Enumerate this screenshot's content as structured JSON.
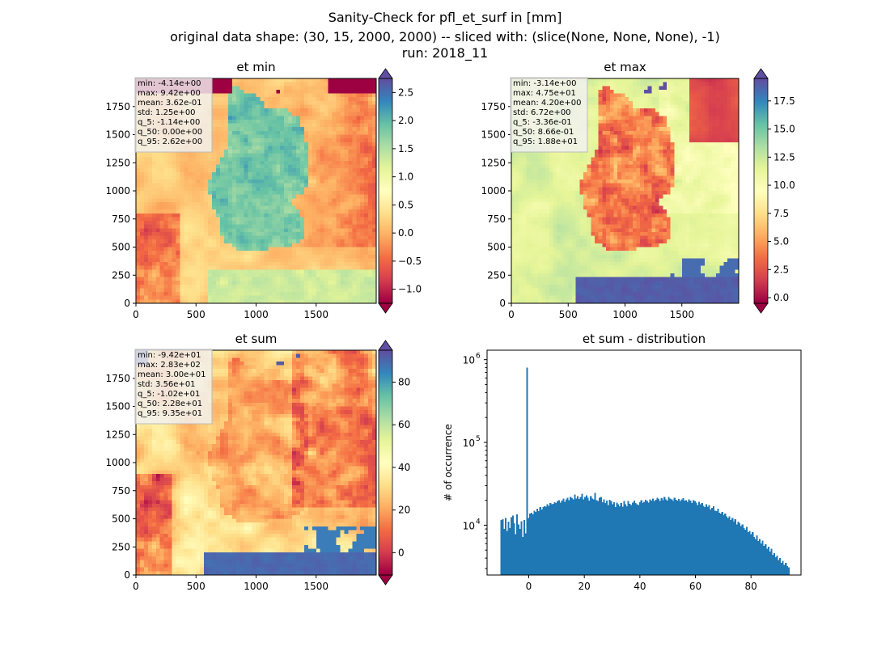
{
  "figure": {
    "suptitle_lines": [
      "Sanity-Check for pfl_et_surf in [mm]",
      "original data shape: (30, 15, 2000, 2000) -- sliced with: (slice(None, None, None), -1)",
      "run: 2018_11"
    ]
  },
  "colors": {
    "map_nan": "#ffffff",
    "hist_bar": "#1f77b4",
    "spectral": [
      "#9e0142",
      "#d53e4f",
      "#f46d43",
      "#fdae61",
      "#fee08b",
      "#ffffbf",
      "#e6f598",
      "#abdda4",
      "#66c2a5",
      "#3288bd",
      "#5e4fa2"
    ]
  },
  "chart_data": [
    {
      "type": "heatmap",
      "title": "et min",
      "colormap": "Spectral",
      "xlim": [
        0,
        2000
      ],
      "ylim": [
        0,
        2000
      ],
      "x_ticks": [
        0,
        500,
        1000,
        1500
      ],
      "y_ticks": [
        0,
        250,
        500,
        750,
        1000,
        1250,
        1500,
        1750
      ],
      "colorbar": {
        "vmin": -1.25,
        "vmax": 2.75,
        "ticks": [
          -1.0,
          -0.5,
          0.0,
          0.5,
          1.0,
          1.5,
          2.0,
          2.5
        ],
        "tick_labels": [
          "−1.0",
          "−0.5",
          "0.0",
          "0.5",
          "1.0",
          "1.5",
          "2.0",
          "2.5"
        ],
        "extend": "both"
      },
      "stats": [
        "min: -4.14e+00",
        "max: 9.42e+00",
        "mean: 3.62e-01",
        "std: 1.25e+00",
        "q_5: -1.14e+00",
        "q_50: 0.00e+00",
        "q_95: 2.62e+00"
      ]
    },
    {
      "type": "heatmap",
      "title": "et max",
      "colormap": "Spectral",
      "xlim": [
        0,
        2000
      ],
      "ylim": [
        0,
        2000
      ],
      "x_ticks": [
        0,
        500,
        1000,
        1500
      ],
      "y_ticks": [
        0,
        250,
        500,
        750,
        1000,
        1250,
        1500,
        1750
      ],
      "colorbar": {
        "vmin": -0.5,
        "vmax": 19.5,
        "ticks": [
          0.0,
          2.5,
          5.0,
          7.5,
          10.0,
          12.5,
          15.0,
          17.5
        ],
        "tick_labels": [
          "0.0",
          "2.5",
          "5.0",
          "7.5",
          "10.0",
          "12.5",
          "15.0",
          "17.5"
        ],
        "extend": "both"
      },
      "stats": [
        "min: -3.14e+00",
        "max: 4.75e+01",
        "mean: 4.20e+00",
        "std: 6.72e+00",
        "q_5: -3.36e-01",
        "q_50: 8.66e-01",
        "q_95: 1.88e+01"
      ]
    },
    {
      "type": "heatmap",
      "title": "et sum",
      "colormap": "Spectral",
      "xlim": [
        0,
        2000
      ],
      "ylim": [
        0,
        2000
      ],
      "x_ticks": [
        0,
        500,
        1000,
        1500
      ],
      "y_ticks": [
        0,
        250,
        500,
        750,
        1000,
        1250,
        1500,
        1750
      ],
      "colorbar": {
        "vmin": -10.5,
        "vmax": 95,
        "ticks": [
          0,
          20,
          40,
          60,
          80
        ],
        "tick_labels": [
          "0",
          "20",
          "40",
          "60",
          "80"
        ],
        "extend": "both"
      },
      "stats": [
        "min: -9.42e+01",
        "max: 2.83e+02",
        "mean: 3.00e+01",
        "std: 3.56e+01",
        "q_5: -1.02e+01",
        "q_50: 2.28e+01",
        "q_95: 9.35e+01"
      ]
    },
    {
      "type": "bar",
      "title": "et sum - distribution",
      "ylabel": "# of occurrence",
      "yscale": "log",
      "xlim": [
        -15,
        98
      ],
      "ylim": [
        2500,
        1300000
      ],
      "x_ticks": [
        0,
        20,
        40,
        60,
        80
      ],
      "y_ticks": [
        10000,
        100000,
        1000000
      ],
      "y_tick_labels": [
        {
          "base": "10",
          "exp": "4"
        },
        {
          "base": "10",
          "exp": "5"
        },
        {
          "base": "10",
          "exp": "6"
        }
      ],
      "bin_start": -10.2,
      "bin_width": 0.52,
      "values": [
        11500,
        11800,
        9000,
        12200,
        8500,
        11000,
        9200,
        12500,
        13000,
        10500,
        7800,
        13500,
        10200,
        9000,
        11200,
        7200,
        11500,
        8000,
        800000,
        12200,
        13800,
        14200,
        13500,
        15000,
        14500,
        15800,
        14800,
        16500,
        15500,
        16500,
        17000,
        16800,
        18000,
        17200,
        18500,
        17800,
        18200,
        19000,
        18500,
        19500,
        20000,
        18800,
        19800,
        21000,
        19200,
        20500,
        21500,
        20000,
        22000,
        21200,
        20500,
        23500,
        21000,
        22500,
        20800,
        22000,
        24000,
        20500,
        21800,
        23000,
        21500,
        19800,
        22500,
        21000,
        20500,
        24500,
        20000,
        19500,
        21500,
        22000,
        19000,
        20500,
        18500,
        19800,
        17500,
        20200,
        19500,
        18000,
        19000,
        16500,
        18800,
        17800,
        17000,
        18500,
        16800,
        19500,
        18000,
        17000,
        19500,
        18200,
        17500,
        18800,
        19800,
        18500,
        18000,
        17500,
        19000,
        20000,
        18500,
        19200,
        20200,
        19500,
        18800,
        20500,
        19800,
        21000,
        19500,
        20200,
        21500,
        20800,
        19500,
        21200,
        20000,
        21800,
        20500,
        19800,
        22000,
        21000,
        20500,
        19500,
        21500,
        20200,
        19800,
        20800,
        19500,
        20500,
        21200,
        19800,
        20000,
        19200,
        20500,
        19800,
        18500,
        20000,
        19500,
        18800,
        17500,
        19200,
        18000,
        18500,
        17200,
        16500,
        18000,
        16800,
        17500,
        15500,
        16200,
        17000,
        15000,
        14800,
        15800,
        14200,
        13800,
        14500,
        13200,
        13800,
        12800,
        12200,
        12800,
        11500,
        12200,
        11000,
        11800,
        10200,
        11000,
        10500,
        9800,
        10200,
        9200,
        8800,
        9500,
        8200,
        8500,
        7800,
        8200,
        7200,
        6800,
        7500,
        6400,
        6800,
        6000,
        6500,
        5600,
        5900,
        5200,
        5500,
        4800,
        5200,
        4400,
        4600,
        4100,
        4300,
        3800,
        4000,
        3500,
        3700,
        3300,
        3500,
        3200,
        3100
      ]
    }
  ]
}
